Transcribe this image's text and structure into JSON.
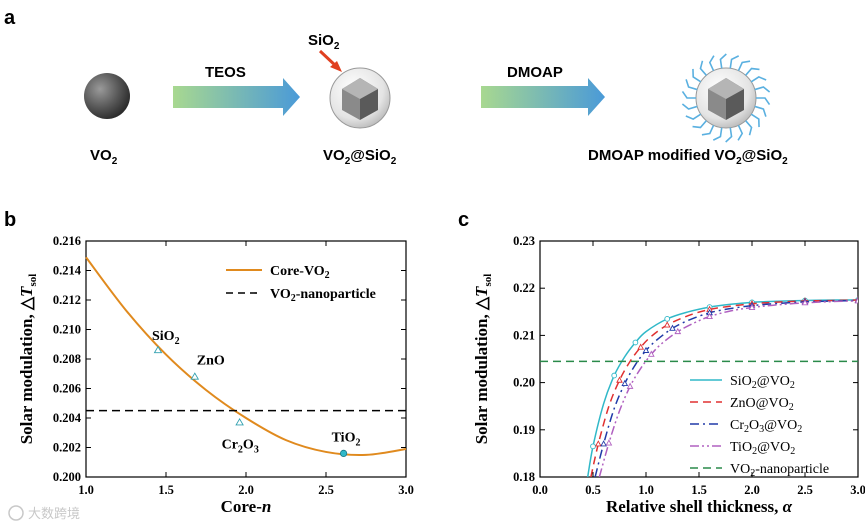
{
  "panel_a": {
    "letter": "a",
    "vo2": {
      "base": "VO",
      "sub": "2"
    },
    "teos": "TEOS",
    "sio2": {
      "base": "SiO",
      "sub": "2"
    },
    "core_shell": {
      "a": "VO",
      "a_sub": "2",
      "b": "@SiO",
      "b_sub": "2"
    },
    "dmoap": "DMOAP",
    "modified": {
      "a": "DMOAP modified VO",
      "a_sub": "2",
      "b": "@SiO",
      "b_sub": "2"
    },
    "colors": {
      "arrow_start": "#a8d890",
      "arrow_end": "#4a9ad8",
      "pointer": "#e04020",
      "ligand": "#5ab0e0"
    }
  },
  "chart_data": [
    {
      "panel": "b",
      "type": "line",
      "xlabel": "Core-n",
      "ylabel": "Solar modulation, △T_sol",
      "xlim": [
        1.0,
        3.0
      ],
      "ylim": [
        0.2,
        0.216
      ],
      "xticks": [
        "1.0",
        "1.5",
        "2.0",
        "2.5",
        "3.0"
      ],
      "yticks": [
        "0.200",
        "0.202",
        "0.204",
        "0.206",
        "0.208",
        "0.210",
        "0.212",
        "0.214",
        "0.216"
      ],
      "legend_position": "top-right",
      "series": [
        {
          "name": "Core-VO2",
          "color": "#e08a1e",
          "style": "solid",
          "x": [
            1.0,
            1.25,
            1.5,
            1.75,
            2.0,
            2.25,
            2.5,
            2.75,
            3.0
          ],
          "y": [
            0.2149,
            0.2113,
            0.2083,
            0.2059,
            0.204,
            0.2025,
            0.2017,
            0.2015,
            0.2019
          ]
        },
        {
          "name": "VO2-nanoparticle",
          "color": "#000000",
          "style": "dashed",
          "x": [
            1.0,
            3.0
          ],
          "y": [
            0.2045,
            0.2045
          ]
        }
      ],
      "points": [
        {
          "label": "SiO2",
          "label_base": "SiO",
          "label_sub": "2",
          "x": 1.45,
          "y": 0.2086
        },
        {
          "label": "ZnO",
          "label_base": "ZnO",
          "label_sub": "",
          "x": 1.68,
          "y": 0.2068
        },
        {
          "label": "Cr2O3",
          "label_base": "Cr",
          "label_sub": "2",
          "label_rest": "O",
          "label_sub2": "3",
          "x": 1.96,
          "y": 0.2037
        },
        {
          "label": "TiO2",
          "label_base": "TiO",
          "label_sub": "2",
          "x": 2.61,
          "y": 0.2016
        }
      ]
    },
    {
      "panel": "c",
      "type": "line",
      "xlabel": "Relative shell thickness, α",
      "ylabel": "Solar modulation, △T_sol",
      "xlim": [
        0.0,
        3.0
      ],
      "ylim": [
        0.18,
        0.23
      ],
      "xticks": [
        "0.0",
        "0.5",
        "1.0",
        "1.5",
        "2.0",
        "2.5",
        "3.0"
      ],
      "yticks": [
        "0.18",
        "0.19",
        "0.20",
        "0.21",
        "0.22",
        "0.23"
      ],
      "legend_position": "lower-right",
      "series": [
        {
          "name": "SiO2@VO2",
          "color": "#30b8c8",
          "style": "solid",
          "x": [
            0.45,
            0.5,
            0.6,
            0.7,
            0.8,
            0.9,
            1.0,
            1.2,
            1.4,
            1.6,
            1.8,
            2.0,
            2.2,
            2.5,
            2.8,
            3.0
          ],
          "y": [
            0.18,
            0.1865,
            0.1955,
            0.2015,
            0.2055,
            0.2085,
            0.2108,
            0.2135,
            0.215,
            0.216,
            0.2166,
            0.217,
            0.2172,
            0.2174,
            0.2175,
            0.2175
          ]
        },
        {
          "name": "ZnO@VO2",
          "color": "#e03030",
          "style": "dashed",
          "x": [
            0.48,
            0.55,
            0.65,
            0.75,
            0.85,
            0.95,
            1.05,
            1.2,
            1.4,
            1.6,
            1.8,
            2.0,
            2.2,
            2.5,
            2.8,
            3.0
          ],
          "y": [
            0.18,
            0.187,
            0.195,
            0.2005,
            0.2045,
            0.2075,
            0.2098,
            0.2122,
            0.2142,
            0.2155,
            0.2162,
            0.2167,
            0.217,
            0.2173,
            0.2174,
            0.2175
          ]
        },
        {
          "name": "Cr2O3@VO2",
          "color": "#203aa8",
          "style": "dashdot",
          "x": [
            0.52,
            0.6,
            0.7,
            0.8,
            0.9,
            1.0,
            1.1,
            1.25,
            1.4,
            1.6,
            1.8,
            2.0,
            2.2,
            2.5,
            2.8,
            3.0
          ],
          "y": [
            0.18,
            0.187,
            0.1945,
            0.1998,
            0.2038,
            0.2068,
            0.209,
            0.2115,
            0.2132,
            0.2148,
            0.2157,
            0.2163,
            0.2167,
            0.2171,
            0.2173,
            0.2174
          ]
        },
        {
          "name": "TiO2@VO2",
          "color": "#b060c0",
          "style": "dashdotdot",
          "x": [
            0.56,
            0.65,
            0.75,
            0.85,
            0.95,
            1.05,
            1.15,
            1.3,
            1.45,
            1.6,
            1.8,
            2.0,
            2.2,
            2.5,
            2.8,
            3.0
          ],
          "y": [
            0.18,
            0.1872,
            0.194,
            0.1992,
            0.203,
            0.206,
            0.2083,
            0.2108,
            0.2126,
            0.214,
            0.2152,
            0.2159,
            0.2164,
            0.2169,
            0.2172,
            0.2173
          ]
        },
        {
          "name": "VO2-nanoparticle",
          "color": "#2a8a4a",
          "style": "dashed",
          "x": [
            0.0,
            3.0
          ],
          "y": [
            0.2045,
            0.2045
          ]
        }
      ]
    }
  ],
  "watermark": "大数跨境"
}
